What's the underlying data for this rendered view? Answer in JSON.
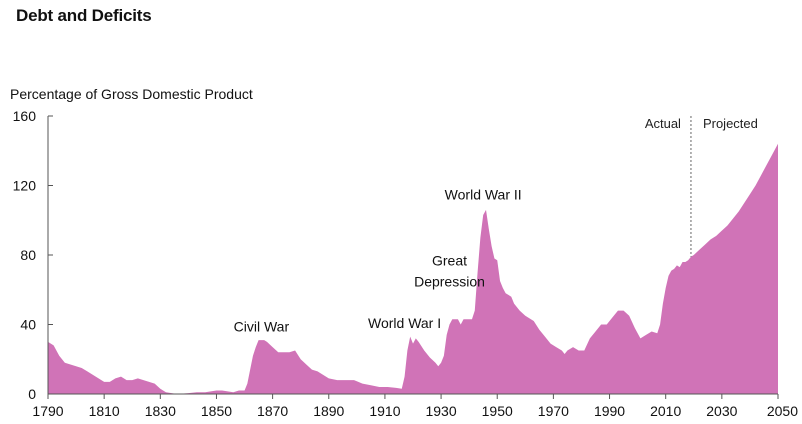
{
  "chart_data": {
    "type": "area",
    "title": "Debt and Deficits",
    "ylabel": "Percentage of Gross Domestic Product",
    "xlabel": "",
    "xlim": [
      1790,
      2050
    ],
    "ylim": [
      0,
      160
    ],
    "x_ticks": [
      1790,
      1810,
      1830,
      1850,
      1870,
      1890,
      1910,
      1930,
      1950,
      1970,
      1990,
      2010,
      2030,
      2050
    ],
    "y_ticks": [
      0,
      40,
      80,
      120,
      160
    ],
    "grid": false,
    "color": "#d073b7",
    "divider": {
      "x": 2019,
      "left_label": "Actual",
      "right_label": "Projected"
    },
    "annotations": [
      {
        "text": "Civil War",
        "x": 1866,
        "y": 36
      },
      {
        "text": "World War I",
        "x": 1917,
        "y": 38
      },
      {
        "text": "Great Depression",
        "x": 1933,
        "y": 63
      },
      {
        "text": "World War II",
        "x": 1945,
        "y": 112
      }
    ],
    "series": [
      {
        "values": [
          [
            1790,
            30
          ],
          [
            1792,
            28
          ],
          [
            1794,
            22
          ],
          [
            1796,
            18
          ],
          [
            1798,
            17
          ],
          [
            1800,
            16
          ],
          [
            1802,
            15
          ],
          [
            1804,
            13
          ],
          [
            1806,
            11
          ],
          [
            1808,
            9
          ],
          [
            1810,
            7
          ],
          [
            1812,
            7
          ],
          [
            1814,
            9
          ],
          [
            1816,
            10
          ],
          [
            1818,
            8
          ],
          [
            1820,
            8
          ],
          [
            1822,
            9
          ],
          [
            1824,
            8
          ],
          [
            1826,
            7
          ],
          [
            1828,
            6
          ],
          [
            1830,
            3
          ],
          [
            1832,
            1
          ],
          [
            1834,
            0.5
          ],
          [
            1836,
            0
          ],
          [
            1840,
            0.5
          ],
          [
            1843,
            1
          ],
          [
            1846,
            1
          ],
          [
            1850,
            2
          ],
          [
            1852,
            2
          ],
          [
            1854,
            1.5
          ],
          [
            1856,
            1
          ],
          [
            1858,
            2
          ],
          [
            1860,
            2
          ],
          [
            1861,
            6
          ],
          [
            1862,
            14
          ],
          [
            1863,
            22
          ],
          [
            1864,
            27
          ],
          [
            1865,
            31
          ],
          [
            1867,
            31
          ],
          [
            1868,
            30
          ],
          [
            1870,
            27
          ],
          [
            1872,
            24
          ],
          [
            1874,
            24
          ],
          [
            1876,
            24
          ],
          [
            1878,
            25
          ],
          [
            1880,
            20
          ],
          [
            1882,
            17
          ],
          [
            1884,
            14
          ],
          [
            1886,
            13
          ],
          [
            1888,
            11
          ],
          [
            1890,
            9
          ],
          [
            1893,
            8
          ],
          [
            1896,
            8
          ],
          [
            1899,
            8
          ],
          [
            1902,
            6
          ],
          [
            1905,
            5
          ],
          [
            1908,
            4
          ],
          [
            1911,
            4
          ],
          [
            1914,
            3.5
          ],
          [
            1916,
            3
          ],
          [
            1917,
            10
          ],
          [
            1918,
            25
          ],
          [
            1919,
            33
          ],
          [
            1920,
            29
          ],
          [
            1921,
            32
          ],
          [
            1922,
            30
          ],
          [
            1924,
            25
          ],
          [
            1926,
            21
          ],
          [
            1928,
            18
          ],
          [
            1929,
            16
          ],
          [
            1930,
            18
          ],
          [
            1931,
            22
          ],
          [
            1932,
            34
          ],
          [
            1933,
            40
          ],
          [
            1934,
            43
          ],
          [
            1936,
            43
          ],
          [
            1937,
            40
          ],
          [
            1938,
            43
          ],
          [
            1940,
            43
          ],
          [
            1941,
            43
          ],
          [
            1942,
            48
          ],
          [
            1943,
            70
          ],
          [
            1944,
            90
          ],
          [
            1945,
            103
          ],
          [
            1946,
            106
          ],
          [
            1947,
            95
          ],
          [
            1948,
            85
          ],
          [
            1949,
            78
          ],
          [
            1950,
            77
          ],
          [
            1951,
            65
          ],
          [
            1952,
            61
          ],
          [
            1953,
            58
          ],
          [
            1955,
            56
          ],
          [
            1956,
            52
          ],
          [
            1958,
            48
          ],
          [
            1960,
            45
          ],
          [
            1963,
            42
          ],
          [
            1965,
            37
          ],
          [
            1967,
            33
          ],
          [
            1969,
            29
          ],
          [
            1971,
            27
          ],
          [
            1973,
            25
          ],
          [
            1974,
            23
          ],
          [
            1975,
            25
          ],
          [
            1977,
            27
          ],
          [
            1979,
            25
          ],
          [
            1981,
            25
          ],
          [
            1983,
            32
          ],
          [
            1985,
            36
          ],
          [
            1987,
            40
          ],
          [
            1989,
            40
          ],
          [
            1991,
            44
          ],
          [
            1993,
            48
          ],
          [
            1995,
            48
          ],
          [
            1997,
            45
          ],
          [
            1999,
            38
          ],
          [
            2001,
            32
          ],
          [
            2003,
            34
          ],
          [
            2005,
            36
          ],
          [
            2007,
            35
          ],
          [
            2008,
            40
          ],
          [
            2009,
            52
          ],
          [
            2010,
            61
          ],
          [
            2011,
            68
          ],
          [
            2012,
            71
          ],
          [
            2013,
            72
          ],
          [
            2014,
            74
          ],
          [
            2015,
            73
          ],
          [
            2016,
            76
          ],
          [
            2017,
            76
          ],
          [
            2018,
            77
          ],
          [
            2019,
            79
          ],
          [
            2020,
            80
          ],
          [
            2022,
            83
          ],
          [
            2024,
            86
          ],
          [
            2026,
            89
          ],
          [
            2028,
            91
          ],
          [
            2030,
            94
          ],
          [
            2032,
            97
          ],
          [
            2034,
            101
          ],
          [
            2036,
            105
          ],
          [
            2038,
            110
          ],
          [
            2040,
            115
          ],
          [
            2042,
            120
          ],
          [
            2044,
            126
          ],
          [
            2046,
            132
          ],
          [
            2048,
            138
          ],
          [
            2050,
            144
          ]
        ]
      }
    ]
  }
}
